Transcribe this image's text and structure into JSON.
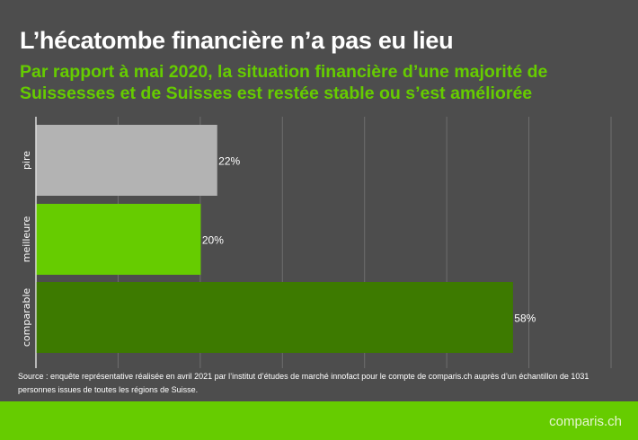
{
  "title": "L’hécatombe financière n’a pas eu lieu",
  "subtitle": "Par rapport à mai 2020, la situation financière d’une majorité de Suissesses et de Suisses est restée stable ou s’est améliorée",
  "source": "Source : enquête représentative réalisée en avril 2021 par l’institut d’études de marché innofact pour le compte de comparis.ch auprès d’un échantillon de 1031 personnes issues de toutes les régions de Suisse.",
  "logo": "comparis.ch",
  "chart_data": {
    "type": "bar",
    "orientation": "horizontal",
    "categories": [
      "pire",
      "meilleure",
      "comparable"
    ],
    "values": [
      22,
      20,
      58
    ],
    "labels": [
      "22%",
      "20%",
      "58%"
    ],
    "colors": [
      "#b3b3b3",
      "#66cc00",
      "#3d7a00"
    ],
    "xlim": [
      0,
      70
    ],
    "grid": true,
    "xticks_step": 10
  }
}
